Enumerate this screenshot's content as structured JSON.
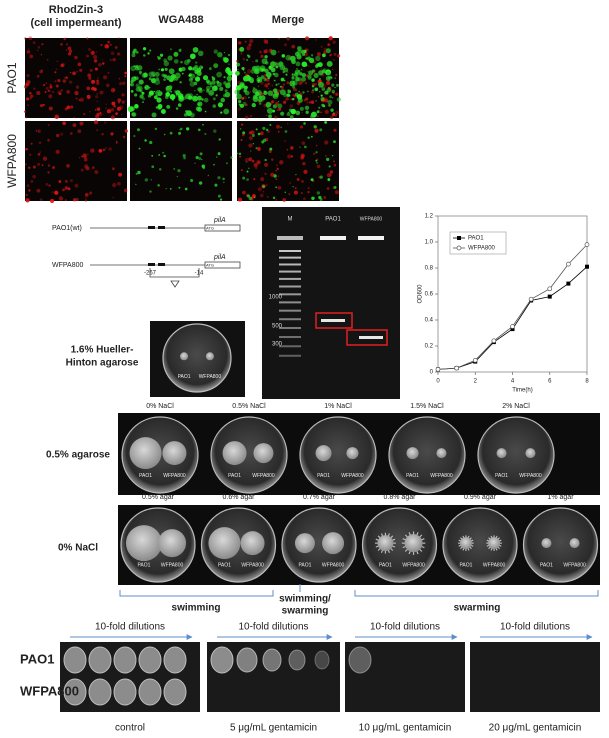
{
  "microscopy": {
    "columns": [
      {
        "title": "RhodZin-3",
        "subtitle": "(cell impermeant)"
      },
      {
        "title": "WGA488"
      },
      {
        "title": "Merge"
      }
    ],
    "rows": [
      "PAO1",
      "WFPA800"
    ]
  },
  "gene_diagram": {
    "strains": [
      "PAO1(wt)",
      "WFPA800"
    ],
    "gene": "pilA",
    "start_codon": "ATG",
    "positions": [
      "-267",
      "-14"
    ]
  },
  "gel": {
    "lanes": [
      "M",
      "PAO1",
      "WFPA800"
    ],
    "markers": [
      "1000",
      "500",
      "300"
    ]
  },
  "chart_data": {
    "type": "line",
    "x_label": "Time(h)",
    "y_label": "OD600",
    "x": [
      0,
      1,
      2,
      3,
      4,
      5,
      6,
      7,
      8
    ],
    "series": [
      {
        "name": "PAO1",
        "color": "#000000",
        "marker": "filled-square",
        "values": [
          0.02,
          0.03,
          0.08,
          0.23,
          0.33,
          0.55,
          0.58,
          0.68,
          0.81
        ]
      },
      {
        "name": "WFPA800",
        "color": "#555555",
        "marker": "open-circle",
        "values": [
          0.02,
          0.03,
          0.09,
          0.24,
          0.35,
          0.56,
          0.64,
          0.83,
          0.98
        ]
      }
    ],
    "xlim": [
      0,
      8
    ],
    "ylim": [
      0,
      1.2
    ],
    "xticks": [
      0,
      2,
      4,
      6,
      8
    ],
    "yticks": [
      0,
      0.2,
      0.4,
      0.6,
      0.8,
      {
        "value": 1,
        "label": "1.0"
      },
      1.2
    ],
    "legend": "upper-left"
  },
  "hinton_plate": {
    "label": [
      "1.6% Hueller-",
      "Hinton agarose"
    ],
    "strains": [
      "PAO1",
      "WFPA800"
    ]
  },
  "nacl_row": {
    "label": "0.5% agarose",
    "conditions": [
      "0% NaCl",
      "0.5% NaCl",
      "1% NaCl",
      "1.5% NaCl",
      "2% NaCl"
    ],
    "strains": [
      "PAO1",
      "WFPA800"
    ]
  },
  "agar_row": {
    "label": "0% NaCl",
    "conditions": [
      "0.5% agar",
      "0.6% agar",
      "0.7% agar",
      "0.8% agar",
      "0.9% agar",
      "1% agar"
    ],
    "strains": [
      "PAO1",
      "WFPA800"
    ]
  },
  "motility": {
    "swimming": "swimming",
    "mixed": [
      "swimming/",
      "swarming"
    ],
    "swarming": "swarming"
  },
  "dilution": {
    "arrow_label": "10-fold dilutions",
    "strains": [
      "PAO1",
      "WFPA800"
    ],
    "conditions": [
      "control",
      "5 μg/mL gentamicin",
      "10 μg/mL gentamicin",
      "20 μg/mL gentamicin"
    ]
  }
}
